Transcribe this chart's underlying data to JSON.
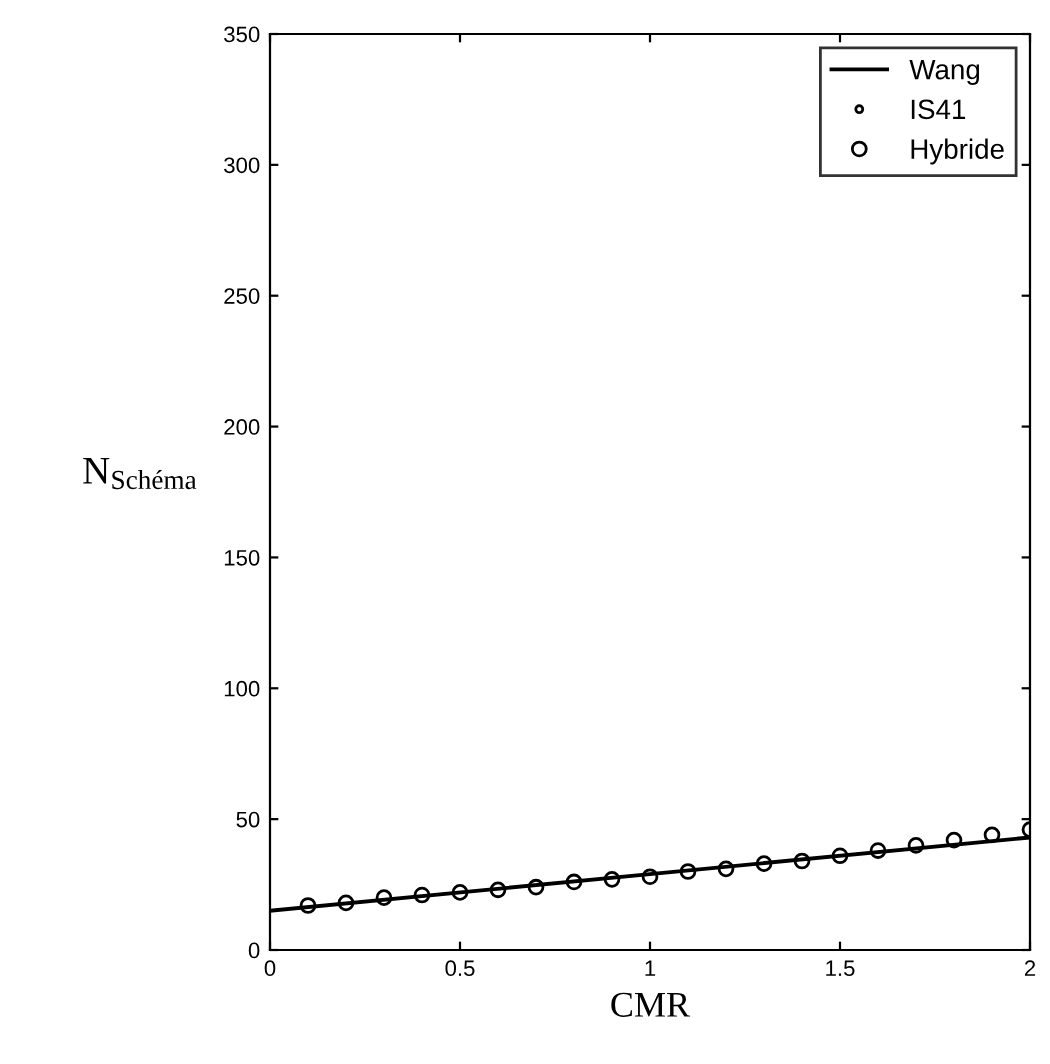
{
  "chart_data": {
    "type": "line",
    "xlabel": "CMR",
    "ylabel": "N$_{Schéma}$",
    "xlim": [
      0,
      2
    ],
    "xticks": [
      0,
      0.5,
      1,
      1.5,
      2
    ],
    "ylim": [
      0,
      350
    ],
    "yticks": [
      0,
      50,
      100,
      150,
      200,
      250,
      300,
      350
    ],
    "legend": "top right",
    "grid": false,
    "series": [
      {
        "name": "Wang",
        "color": "#000000",
        "marker": "none",
        "line_style": "solid",
        "x": [
          0,
          1,
          2
        ],
        "values": [
          15,
          29,
          43
        ]
      },
      {
        "name": "IS41",
        "color": "#000000",
        "type": "scatter",
        "marker": "point"
      },
      {
        "name": "Hybride",
        "color": "#000000",
        "type": "scatter",
        "marker": "circle",
        "x": [
          0.1,
          0.2,
          0.3,
          0.4,
          0.5,
          0.6,
          0.7,
          0.8,
          0.9,
          1.0,
          1.1,
          1.2,
          1.3,
          1.4,
          1.5,
          1.6,
          1.7,
          1.8,
          1.9,
          2.0
        ],
        "values": [
          17,
          18,
          20,
          21,
          22,
          23,
          24,
          26,
          27,
          28,
          30,
          31,
          33,
          34,
          36,
          38,
          40,
          42,
          44,
          46
        ]
      }
    ]
  }
}
